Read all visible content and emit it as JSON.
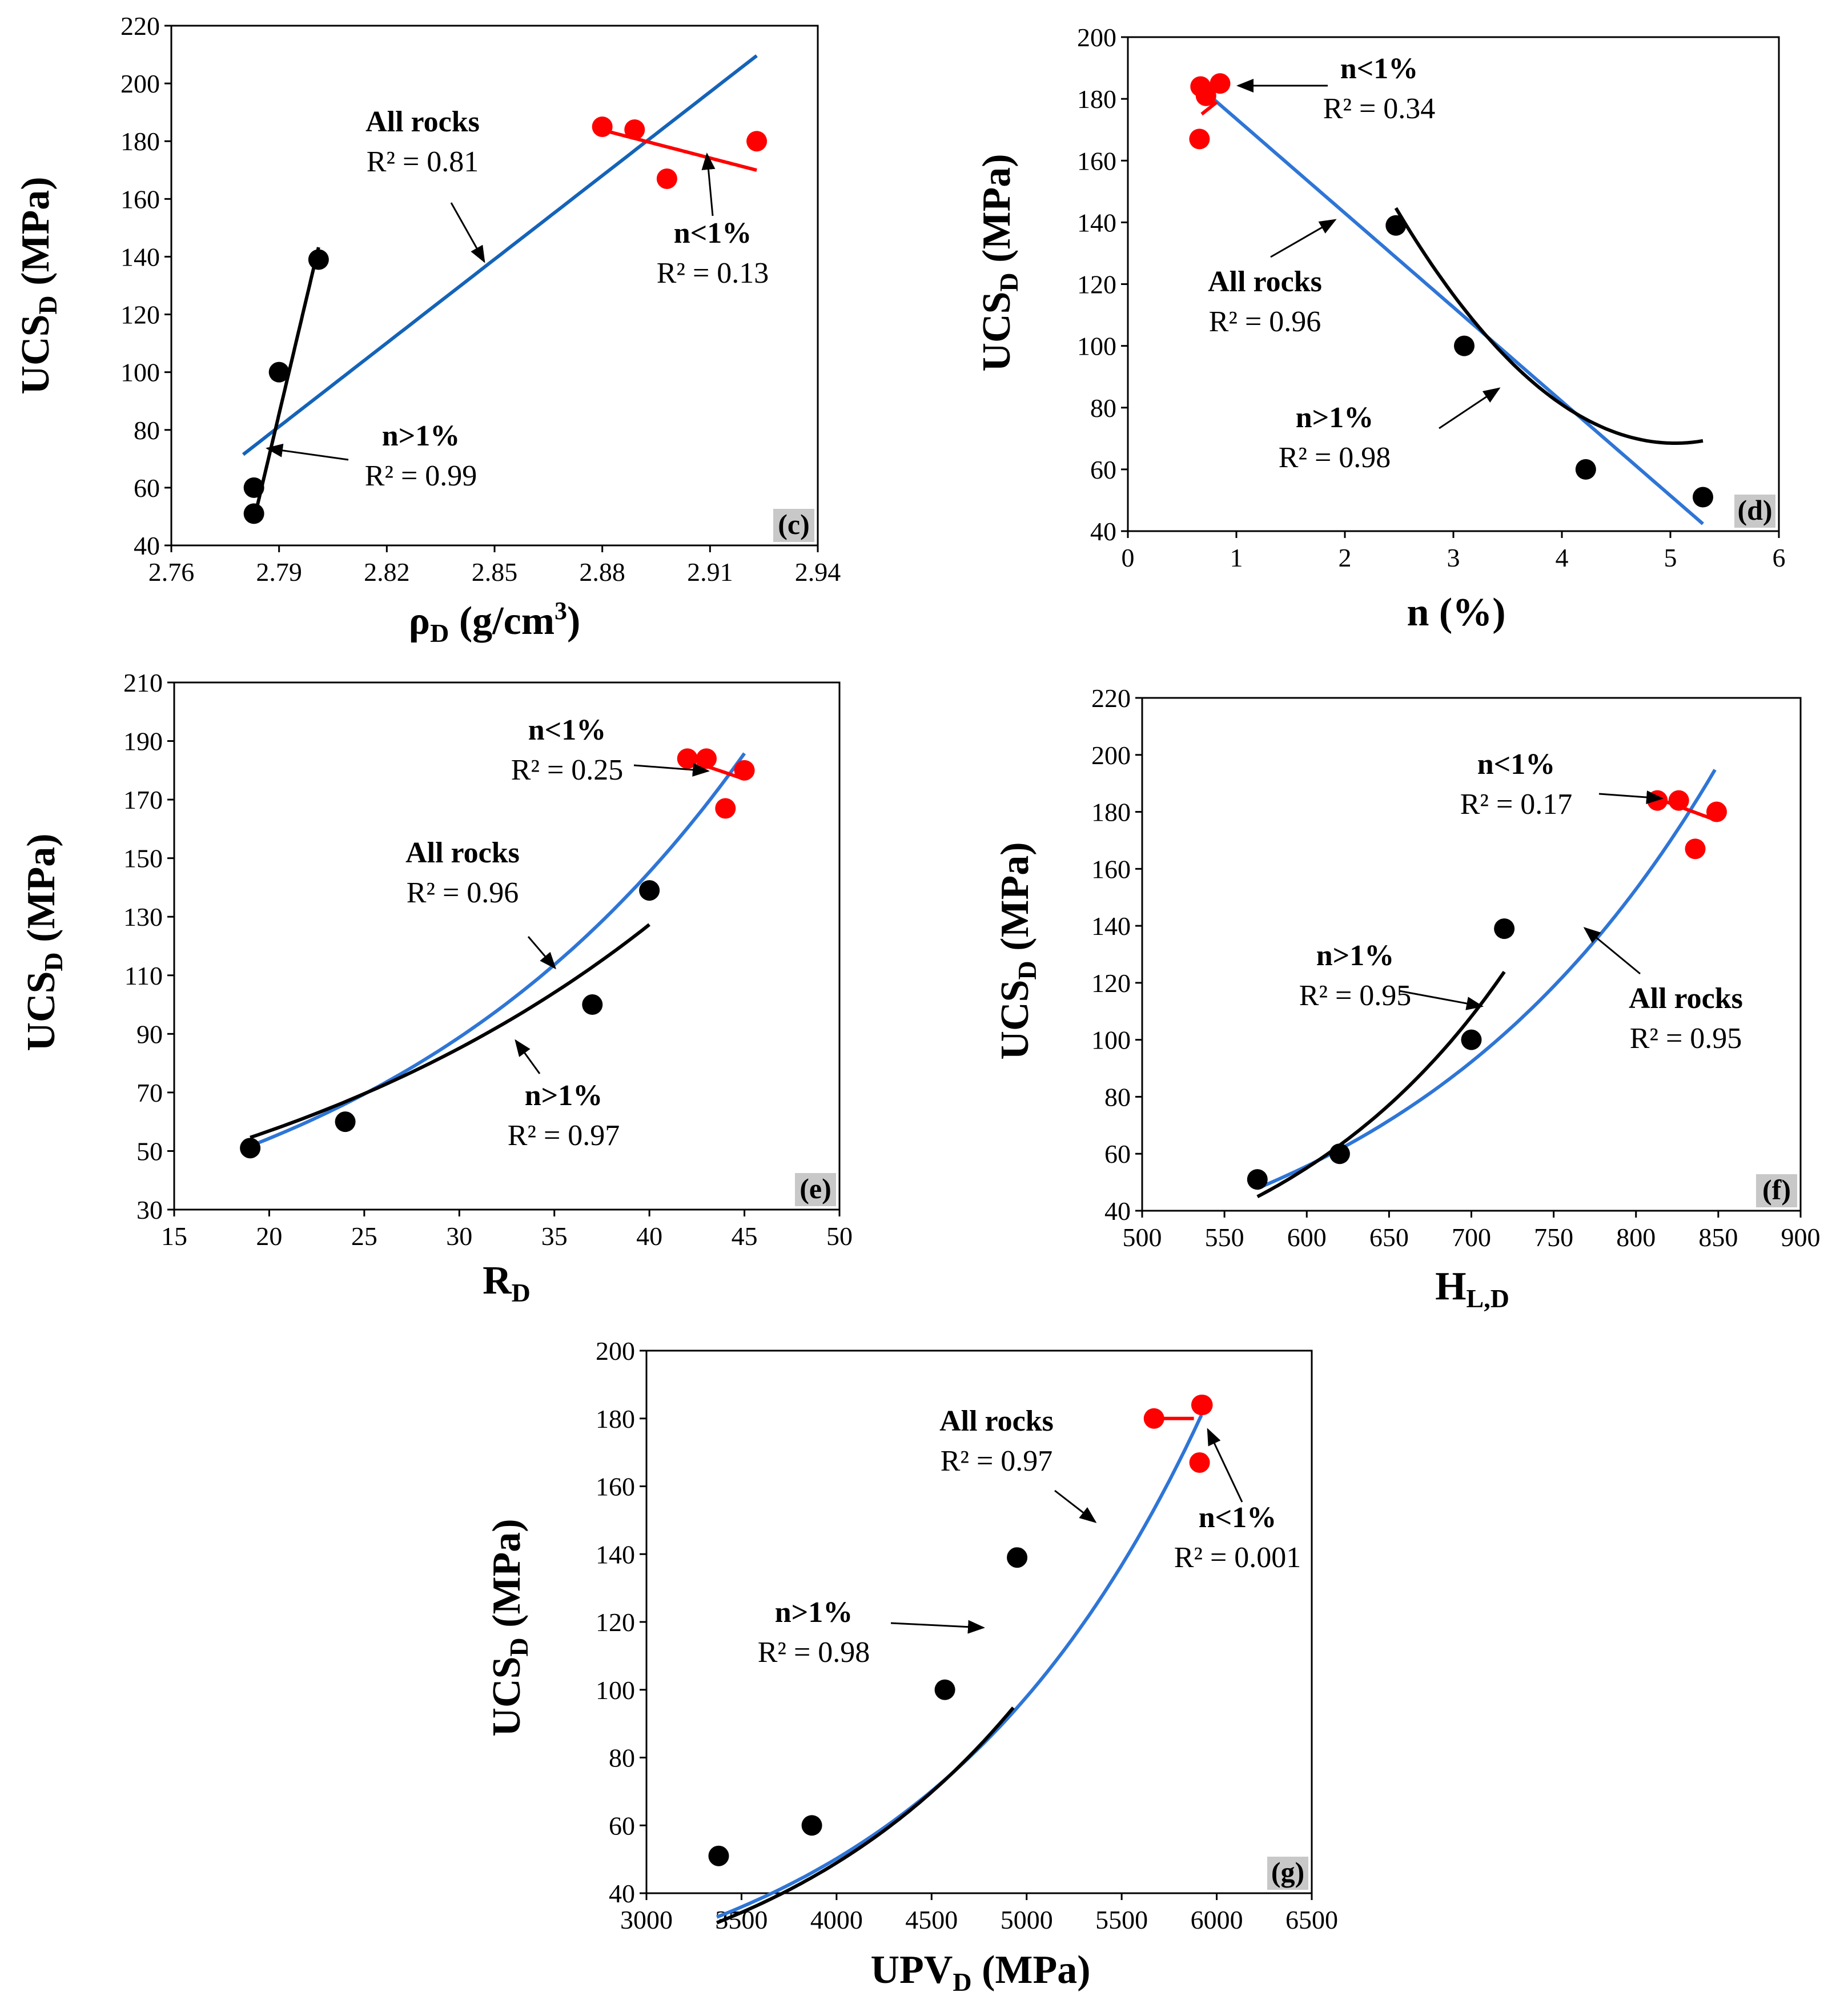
{
  "colors": {
    "all_rocks": "#2E75D6",
    "all_rocks_c": "#1463B8",
    "n_gt_1": "#000000",
    "n_lt_1": "#FF0000",
    "tag_bg": "#C8C8C8"
  },
  "chart_data": [
    {
      "id": "c",
      "type": "scatter",
      "tag": "(c)",
      "xlabel": {
        "main": "ρ",
        "sub": "D",
        "rest": " (g/cm",
        "sup": "3",
        "end": ")"
      },
      "ylabel": {
        "main": "UCS",
        "sub": "D",
        "rest": " (MPa)"
      },
      "xlim": [
        2.76,
        2.94
      ],
      "ylim": [
        40,
        220
      ],
      "xticks": [
        2.76,
        2.79,
        2.82,
        2.85,
        2.88,
        2.91,
        2.94
      ],
      "xtick_labels": [
        "2.76",
        "2.79",
        "2.82",
        "2.85",
        "2.88",
        "2.91",
        "2.94"
      ],
      "yticks": [
        40,
        60,
        80,
        100,
        120,
        140,
        160,
        180,
        200,
        220
      ],
      "ytick_labels": [
        "40",
        "60",
        "80",
        "100",
        "120",
        "140",
        "160",
        "180",
        "200",
        "220"
      ],
      "series": [
        {
          "group": "n>1%",
          "points": [
            [
              2.783,
              51
            ],
            [
              2.783,
              60
            ],
            [
              2.79,
              100
            ],
            [
              2.801,
              139
            ]
          ]
        },
        {
          "group": "n<1%",
          "points": [
            [
              2.88,
              185
            ],
            [
              2.889,
              184
            ],
            [
              2.898,
              167
            ],
            [
              2.923,
              180
            ]
          ]
        }
      ],
      "fits": [
        {
          "group": "all",
          "kind": "linear",
          "a": -2614,
          "b": 966,
          "x_range": [
            2.78,
            2.923
          ]
        },
        {
          "group": "n>1%",
          "kind": "linear",
          "a": -14555,
          "b": 5247.5,
          "x_range": [
            2.783,
            2.801
          ]
        },
        {
          "group": "n<1%",
          "kind": "linear",
          "a": 1117,
          "b": -324,
          "x_range": [
            2.88,
            2.923
          ]
        }
      ],
      "annotations": [
        {
          "title": "All rocks",
          "r2": "R² = 0.81",
          "group": "all"
        },
        {
          "title": "n<1%",
          "r2": "R² = 0.13",
          "group": "n<1%"
        },
        {
          "title": "n>1%",
          "r2": "R² = 0.99",
          "group": "n>1%"
        }
      ]
    },
    {
      "id": "d",
      "type": "scatter",
      "tag": "(d)",
      "xlabel": {
        "main": "n (%)"
      },
      "ylabel": {
        "main": "UCS",
        "sub": "D",
        "rest": " (MPa)"
      },
      "xlim": [
        0,
        6
      ],
      "ylim": [
        40,
        200
      ],
      "xticks": [
        0,
        1,
        2,
        3,
        4,
        5,
        6
      ],
      "xtick_labels": [
        "0",
        "1",
        "2",
        "3",
        "4",
        "5",
        "6"
      ],
      "yticks": [
        40,
        60,
        80,
        100,
        120,
        140,
        160,
        180,
        200
      ],
      "ytick_labels": [
        "40",
        "60",
        "80",
        "100",
        "120",
        "140",
        "160",
        "180",
        "200"
      ],
      "series": [
        {
          "group": "n>1%",
          "points": [
            [
              2.47,
              139
            ],
            [
              3.1,
              100
            ],
            [
              4.22,
              60
            ],
            [
              5.3,
              51
            ]
          ]
        },
        {
          "group": "n<1%",
          "points": [
            [
              0.67,
              184
            ],
            [
              0.72,
              181
            ],
            [
              0.85,
              185
            ],
            [
              0.66,
              167
            ]
          ]
        }
      ],
      "fits": [
        {
          "group": "all",
          "kind": "linear",
          "a": 204,
          "b": -30.5,
          "x_range": [
            0.66,
            5.3
          ]
        },
        {
          "group": "n>1%",
          "kind": "quadratic",
          "a": 361,
          "b": -116,
          "c": 11.5,
          "x_range": [
            2.47,
            5.3
          ]
        },
        {
          "group": "n<1%",
          "kind": "linear",
          "a": 156,
          "b": 28,
          "x_range": [
            0.68,
            0.82
          ]
        }
      ],
      "annotations": [
        {
          "title": "n<1%",
          "r2": "R² = 0.34",
          "group": "n<1%"
        },
        {
          "title": "All rocks",
          "r2": "R² = 0.96",
          "group": "all"
        },
        {
          "title": "n>1%",
          "r2": "R² = 0.98",
          "group": "n>1%"
        }
      ]
    },
    {
      "id": "e",
      "type": "scatter",
      "tag": "(e)",
      "xlabel": {
        "main": "R",
        "sub": "D"
      },
      "ylabel": {
        "main": "UCS",
        "sub": "D",
        "rest": " (MPa)"
      },
      "xlim": [
        15,
        50
      ],
      "ylim": [
        30,
        210
      ],
      "xticks": [
        15,
        20,
        25,
        30,
        35,
        40,
        45,
        50
      ],
      "xtick_labels": [
        "15",
        "20",
        "25",
        "30",
        "35",
        "40",
        "45",
        "50"
      ],
      "yticks": [
        30,
        50,
        70,
        90,
        110,
        130,
        150,
        170,
        190,
        210
      ],
      "ytick_labels": [
        "30",
        "50",
        "70",
        "90",
        "110",
        "130",
        "150",
        "170",
        "190",
        "210"
      ],
      "series": [
        {
          "group": "n>1%",
          "points": [
            [
              19,
              51
            ],
            [
              24,
              60
            ],
            [
              37,
              100
            ],
            [
              40,
              139
            ]
          ]
        },
        {
          "group": "n<1%",
          "points": [
            [
              42,
              184
            ],
            [
              43,
              184
            ],
            [
              44,
              167
            ],
            [
              45,
              180
            ]
          ]
        }
      ],
      "fits": [
        {
          "group": "all",
          "kind": "exponential",
          "a": 20.3,
          "k": 0.0492,
          "x_range": [
            19,
            45
          ]
        },
        {
          "group": "n>1%",
          "kind": "exponential",
          "a": 25.4,
          "k": 0.0403,
          "x_range": [
            19,
            40
          ]
        },
        {
          "group": "n<1%",
          "kind": "linear",
          "a": 276,
          "b": -2.2,
          "x_range": [
            42.5,
            45
          ]
        }
      ],
      "annotations": [
        {
          "title": "n<1%",
          "r2": "R² = 0.25",
          "group": "n<1%"
        },
        {
          "title": "All rocks",
          "r2": "R² = 0.96",
          "group": "all"
        },
        {
          "title": "n>1%",
          "r2": "R² = 0.97",
          "group": "n>1%"
        }
      ]
    },
    {
      "id": "f",
      "type": "scatter",
      "tag": "(f)",
      "xlabel": {
        "main": "H",
        "sub": "L,D"
      },
      "ylabel": {
        "main": "UCS",
        "sub": "D",
        "rest": " (MPa)"
      },
      "xlim": [
        500,
        900
      ],
      "ylim": [
        40,
        220
      ],
      "xticks": [
        500,
        550,
        600,
        650,
        700,
        750,
        800,
        850,
        900
      ],
      "xtick_labels": [
        "500",
        "550",
        "600",
        "650",
        "700",
        "750",
        "800",
        "850",
        "900"
      ],
      "yticks": [
        40,
        60,
        80,
        100,
        120,
        140,
        160,
        180,
        200,
        220
      ],
      "ytick_labels": [
        "40",
        "60",
        "80",
        "100",
        "120",
        "140",
        "160",
        "180",
        "200",
        "220"
      ],
      "series": [
        {
          "group": "n>1%",
          "points": [
            [
              570,
              51
            ],
            [
              620,
              60
            ],
            [
              700,
              100
            ],
            [
              720,
              139
            ]
          ]
        },
        {
          "group": "n<1%",
          "points": [
            [
              813,
              184
            ],
            [
              826,
              184
            ],
            [
              836,
              167
            ],
            [
              849,
              180
            ]
          ]
        }
      ],
      "fits": [
        {
          "group": "all",
          "kind": "exponential",
          "a": 2.69,
          "k": 0.00505,
          "x_range": [
            570,
            848
          ]
        },
        {
          "group": "n>1%",
          "kind": "exponential",
          "a": 0.953,
          "k": 0.00676,
          "x_range": [
            570,
            720
          ]
        },
        {
          "group": "n<1%",
          "kind": "linear",
          "a": 357,
          "b": -0.212,
          "x_range": [
            818,
            846
          ]
        }
      ],
      "annotations": [
        {
          "title": "n<1%",
          "r2": "R² = 0.17",
          "group": "n<1%"
        },
        {
          "title": "n>1%",
          "r2": "R² = 0.95",
          "group": "n>1%"
        },
        {
          "title": "All rocks",
          "r2": "R² = 0.95",
          "group": "all"
        }
      ]
    },
    {
      "id": "g",
      "type": "scatter",
      "tag": "(g)",
      "xlabel": {
        "main": "UPV",
        "sub": "D",
        "rest": " (MPa)"
      },
      "ylabel": {
        "main": "UCS",
        "sub": "D",
        "rest": " (MPa)"
      },
      "xlim": [
        3000,
        6500
      ],
      "ylim": [
        40,
        200
      ],
      "xticks": [
        3000,
        3500,
        4000,
        4500,
        5000,
        5500,
        6000,
        6500
      ],
      "xtick_labels": [
        "3000",
        "3500",
        "4000",
        "4500",
        "5000",
        "5500",
        "6000",
        "6500"
      ],
      "yticks": [
        40,
        60,
        80,
        100,
        120,
        140,
        160,
        180,
        200
      ],
      "ytick_labels": [
        "40",
        "60",
        "80",
        "100",
        "120",
        "140",
        "160",
        "180",
        "200"
      ],
      "series": [
        {
          "group": "n>1%",
          "points": [
            [
              3380,
              51
            ],
            [
              3870,
              60
            ],
            [
              4570,
              100
            ],
            [
              4950,
              139
            ]
          ]
        },
        {
          "group": "n<1%",
          "points": [
            [
              5670,
              180
            ],
            [
              5920,
              184
            ],
            [
              5910,
              167
            ],
            [
              5925,
              184
            ]
          ]
        }
      ],
      "fits": [
        {
          "group": "all",
          "kind": "exponential",
          "a": 3.47,
          "k": 0.000668,
          "x_range": [
            3370,
            5920
          ]
        },
        {
          "group": "n>1%",
          "kind": "exponential",
          "a": 2.86,
          "k": 0.00071,
          "x_range": [
            3370,
            4930
          ]
        },
        {
          "group": "n<1%",
          "kind": "linear",
          "a": 180,
          "b": 0,
          "x_range": [
            5670,
            5880
          ]
        }
      ],
      "annotations": [
        {
          "title": "All rocks",
          "r2": "R² = 0.97",
          "group": "all"
        },
        {
          "title": "n<1%",
          "r2": "R² = 0.001",
          "group": "n<1%"
        },
        {
          "title": "n>1%",
          "r2": "R² = 0.98",
          "group": "n>1%"
        }
      ]
    }
  ]
}
